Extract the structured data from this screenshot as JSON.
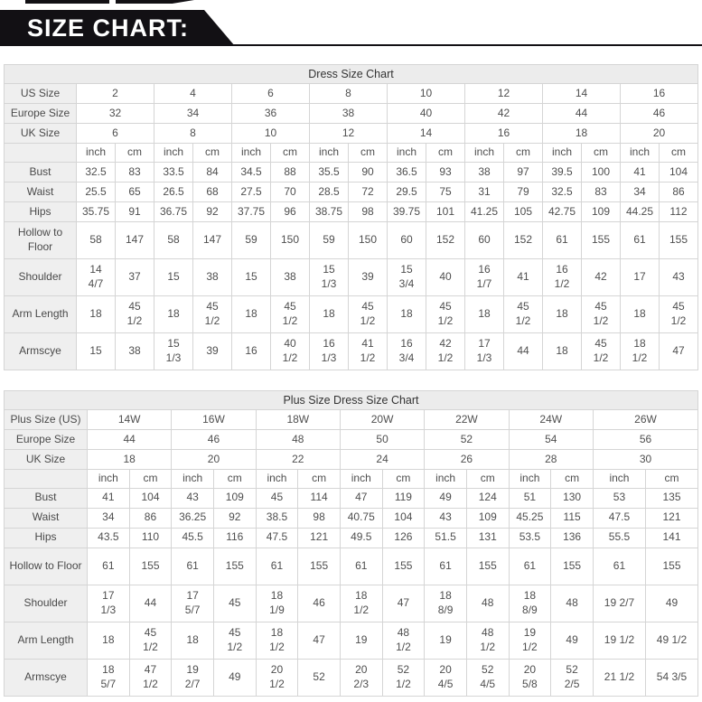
{
  "banner": {
    "title": "SIZE CHART:",
    "bg_color": "#121014",
    "text_color": "#ffffff"
  },
  "tables": [
    {
      "title": "Dress Size Chart",
      "size_rows": [
        {
          "label": "US Size",
          "values": [
            "2",
            "4",
            "6",
            "8",
            "10",
            "12",
            "14",
            "16"
          ]
        },
        {
          "label": "Europe Size",
          "values": [
            "32",
            "34",
            "36",
            "38",
            "40",
            "42",
            "44",
            "46"
          ]
        },
        {
          "label": "UK Size",
          "values": [
            "6",
            "8",
            "10",
            "12",
            "14",
            "16",
            "18",
            "20"
          ]
        }
      ],
      "unit_header": [
        "inch",
        "cm",
        "inch",
        "cm",
        "inch",
        "cm",
        "inch",
        "cm",
        "inch",
        "cm",
        "inch",
        "cm",
        "inch",
        "cm",
        "inch",
        "cm"
      ],
      "measure_rows": [
        {
          "label": "Bust",
          "cells": [
            "32.5",
            "83",
            "33.5",
            "84",
            "34.5",
            "88",
            "35.5",
            "90",
            "36.5",
            "93",
            "38",
            "97",
            "39.5",
            "100",
            "41",
            "104"
          ]
        },
        {
          "label": "Waist",
          "cells": [
            "25.5",
            "65",
            "26.5",
            "68",
            "27.5",
            "70",
            "28.5",
            "72",
            "29.5",
            "75",
            "31",
            "79",
            "32.5",
            "83",
            "34",
            "86"
          ]
        },
        {
          "label": "Hips",
          "cells": [
            "35.75",
            "91",
            "36.75",
            "92",
            "37.75",
            "96",
            "38.75",
            "98",
            "39.75",
            "101",
            "41.25",
            "105",
            "42.75",
            "109",
            "44.25",
            "112"
          ]
        },
        {
          "label": "Hollow to Floor",
          "cells": [
            "58",
            "147",
            "58",
            "147",
            "59",
            "150",
            "59",
            "150",
            "60",
            "152",
            "60",
            "152",
            "61",
            "155",
            "61",
            "155"
          ]
        },
        {
          "label": "Shoulder",
          "cells": [
            "14\n4/7",
            "37",
            "15",
            "38",
            "15",
            "38",
            "15\n1/3",
            "39",
            "15\n3/4",
            "40",
            "16\n1/7",
            "41",
            "16\n1/2",
            "42",
            "17",
            "43"
          ]
        },
        {
          "label": "Arm Length",
          "cells": [
            "18",
            "45\n1/2",
            "18",
            "45\n1/2",
            "18",
            "45\n1/2",
            "18",
            "45\n1/2",
            "18",
            "45\n1/2",
            "18",
            "45\n1/2",
            "18",
            "45\n1/2",
            "18",
            "45\n1/2"
          ]
        },
        {
          "label": "Armscye",
          "cells": [
            "15",
            "38",
            "15\n1/3",
            "39",
            "16",
            "40\n1/2",
            "16\n1/3",
            "41\n1/2",
            "16\n3/4",
            "42\n1/2",
            "17\n1/3",
            "44",
            "18",
            "45\n1/2",
            "18\n1/2",
            "47"
          ]
        }
      ]
    },
    {
      "title": "Plus Size Dress Size Chart",
      "size_rows": [
        {
          "label": "Plus Size (US)",
          "values": [
            "14W",
            "16W",
            "18W",
            "20W",
            "22W",
            "24W",
            "26W"
          ]
        },
        {
          "label": "Europe Size",
          "values": [
            "44",
            "46",
            "48",
            "50",
            "52",
            "54",
            "56"
          ]
        },
        {
          "label": "UK Size",
          "values": [
            "18",
            "20",
            "22",
            "24",
            "26",
            "28",
            "30"
          ]
        }
      ],
      "unit_header": [
        "inch",
        "cm",
        "inch",
        "cm",
        "inch",
        "cm",
        "inch",
        "cm",
        "inch",
        "cm",
        "inch",
        "cm",
        "inch",
        "cm"
      ],
      "measure_rows": [
        {
          "label": "Bust",
          "cells": [
            "41",
            "104",
            "43",
            "109",
            "45",
            "114",
            "47",
            "119",
            "49",
            "124",
            "51",
            "130",
            "53",
            "135"
          ]
        },
        {
          "label": "Waist",
          "cells": [
            "34",
            "86",
            "36.25",
            "92",
            "38.5",
            "98",
            "40.75",
            "104",
            "43",
            "109",
            "45.25",
            "115",
            "47.5",
            "121"
          ]
        },
        {
          "label": "Hips",
          "cells": [
            "43.5",
            "110",
            "45.5",
            "116",
            "47.5",
            "121",
            "49.5",
            "126",
            "51.5",
            "131",
            "53.5",
            "136",
            "55.5",
            "141"
          ]
        },
        {
          "label": "Hollow to Floor",
          "cells": [
            "61",
            "155",
            "61",
            "155",
            "61",
            "155",
            "61",
            "155",
            "61",
            "155",
            "61",
            "155",
            "61",
            "155"
          ]
        },
        {
          "label": "Shoulder",
          "cells": [
            "17\n1/3",
            "44",
            "17\n5/7",
            "45",
            "18\n1/9",
            "46",
            "18\n1/2",
            "47",
            "18\n8/9",
            "48",
            "18\n8/9",
            "48",
            "19 2/7",
            "49"
          ]
        },
        {
          "label": "Arm Length",
          "cells": [
            "18",
            "45\n1/2",
            "18",
            "45\n1/2",
            "18\n1/2",
            "47",
            "19",
            "48\n1/2",
            "19",
            "48\n1/2",
            "19\n1/2",
            "49",
            "19 1/2",
            "49 1/2"
          ]
        },
        {
          "label": "Armscye",
          "cells": [
            "18\n5/7",
            "47\n1/2",
            "19\n2/7",
            "49",
            "20\n1/2",
            "52",
            "20\n2/3",
            "52\n1/2",
            "20\n4/5",
            "52\n4/5",
            "20\n5/8",
            "52\n2/5",
            "21 1/2",
            "54 3/5"
          ]
        }
      ]
    }
  ]
}
